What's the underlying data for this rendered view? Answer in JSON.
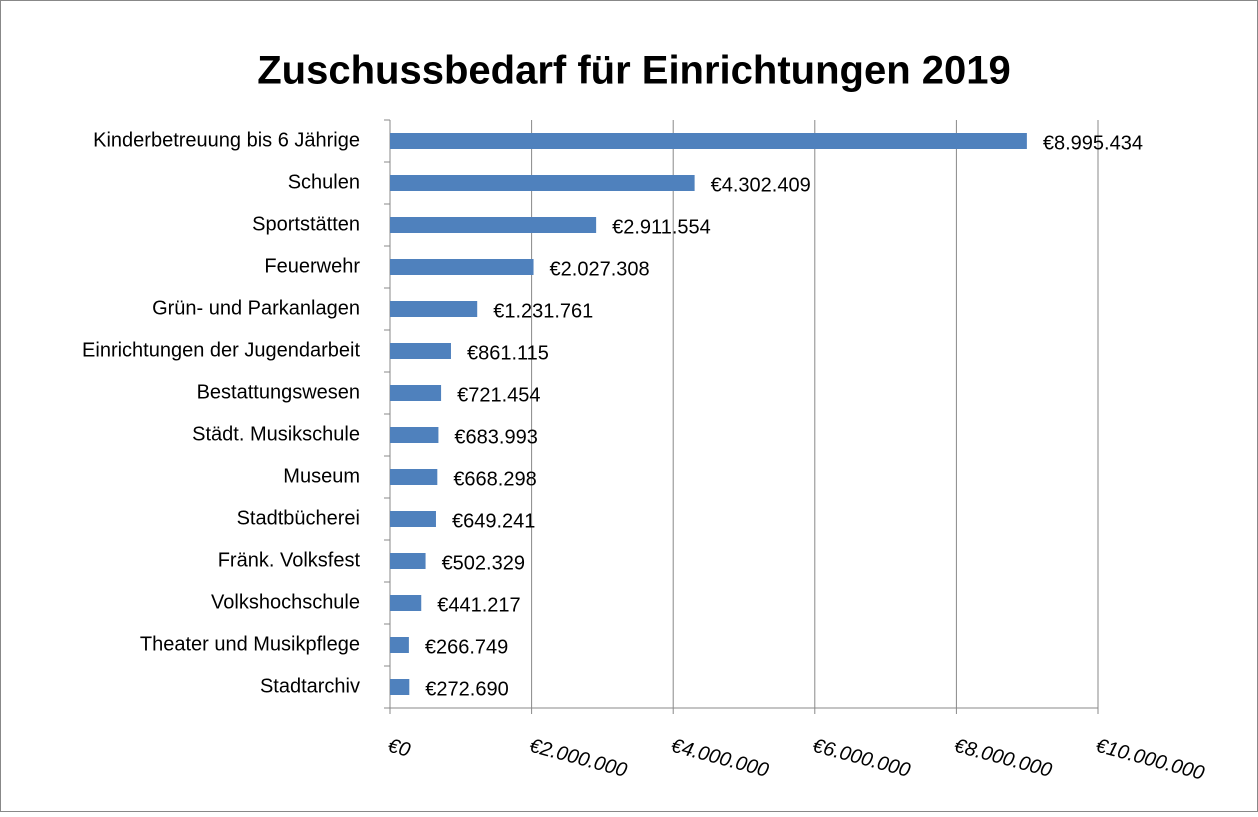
{
  "chart_data": {
    "type": "bar",
    "orientation": "horizontal",
    "title": "Zuschussbedarf für Einrichtungen 2019",
    "categories": [
      "Kinderbetreuung bis 6 Jährige",
      "Schulen",
      "Sportstätten",
      "Feuerwehr",
      "Grün- und Parkanlagen",
      "Einrichtungen der Jugendarbeit",
      "Bestattungswesen",
      "Städt. Musikschule",
      "Museum",
      "Stadtbücherei",
      "Fränk. Volksfest",
      "Volkshochschule",
      "Theater und Musikpflege",
      "Stadtarchiv"
    ],
    "values": [
      8995434,
      4302409,
      2911554,
      2027308,
      1231761,
      861115,
      721454,
      683993,
      668298,
      649241,
      502329,
      441217,
      266749,
      272690
    ],
    "value_labels": [
      "€8.995.434",
      "€4.302.409",
      "€2.911.554",
      "€2.027.308",
      "€1.231.761",
      "€861.115",
      "€721.454",
      "€683.993",
      "€668.298",
      "€649.241",
      "€502.329",
      "€441.217",
      "€266.749",
      "€272.690"
    ],
    "color": "#4f81bd",
    "xlim": [
      0,
      10000000
    ],
    "xticks": [
      {
        "value": 0,
        "label": "€0"
      },
      {
        "value": 2000000,
        "label": "€2.000.000"
      },
      {
        "value": 4000000,
        "label": "€4.000.000"
      },
      {
        "value": 6000000,
        "label": "€6.000.000"
      },
      {
        "value": 8000000,
        "label": "€8.000.000"
      },
      {
        "value": 10000000,
        "label": "€10.000.000"
      }
    ],
    "grid": true
  }
}
